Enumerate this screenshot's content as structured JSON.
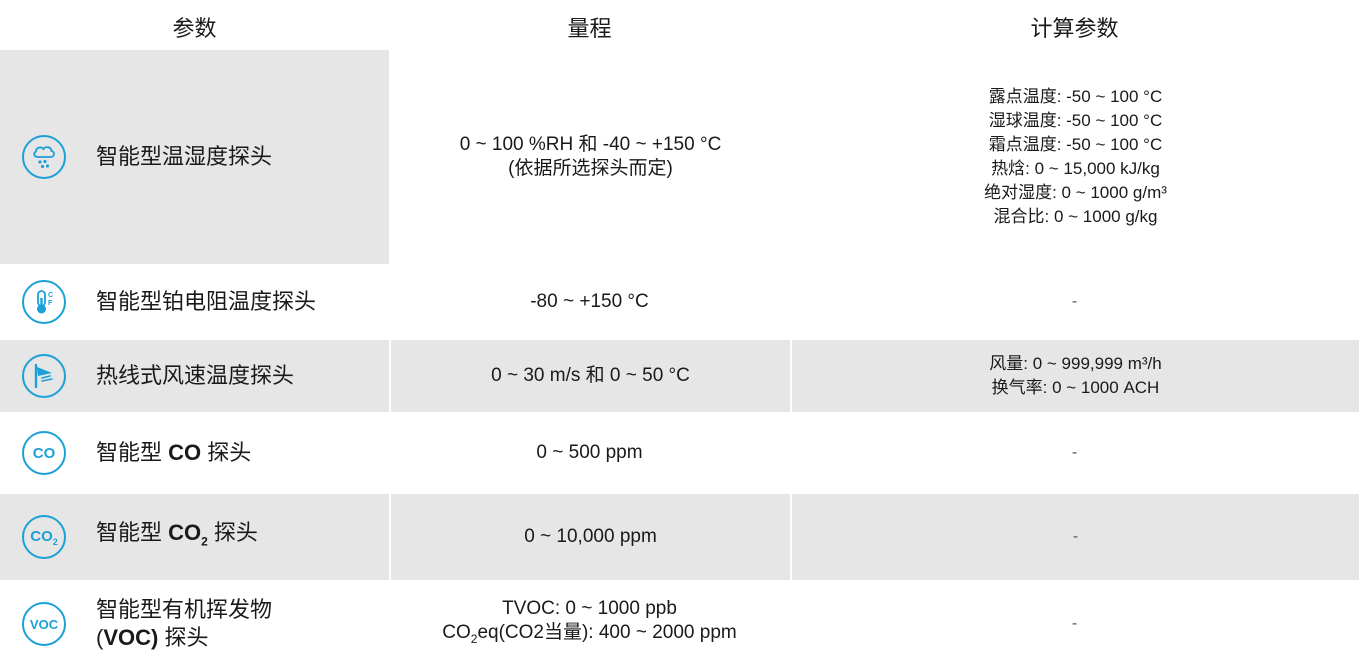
{
  "header": {
    "col_param": "参数",
    "col_range": "量程",
    "col_calc": "计算参数"
  },
  "rows": [
    {
      "icon": "cloud-rain-icon",
      "name": "智能型温湿度探头",
      "range_line1": "0 ~ 100 %RH 和 -40 ~ +150 °C",
      "range_line2": "(依据所选探头而定)",
      "calc": [
        "露点温度: -50 ~ 100 °C",
        "湿球温度: -50 ~ 100 °C",
        "霜点温度: -50 ~ 100 °C",
        "热焓: 0 ~ 15,000 kJ/kg",
        "绝对湿度: 0 ~ 1000 g/m³",
        "混合比: 0 ~ 1000 g/kg"
      ]
    },
    {
      "icon": "thermometer-icon",
      "icon_c": "C",
      "icon_f": "F",
      "name": "智能型铂电阻温度探头",
      "range_line1": "-80 ~ +150 °C",
      "calc_dash": "-"
    },
    {
      "icon": "anemometer-icon",
      "name": "热线式风速温度探头",
      "range_line1": "0 ~ 30 m/s 和 0 ~ 50 °C",
      "calc": [
        "风量: 0 ~ 999,999 m³/h",
        "换气率: 0 ~ 1000 ACH"
      ]
    },
    {
      "icon": "co-icon",
      "icon_text": "CO",
      "name_pre": "智能型 ",
      "name_bold": "CO",
      "name_post": " 探头",
      "range_line1": "0 ~ 500 ppm",
      "calc_dash": "-"
    },
    {
      "icon": "co2-icon",
      "icon_text": "CO",
      "icon_sub": "2",
      "name_pre": "智能型 ",
      "name_bold": "CO",
      "name_sub": "2",
      "name_post": " 探头",
      "range_line1": "0 ~ 10,000 ppm",
      "calc_dash": "-"
    },
    {
      "icon": "voc-icon",
      "icon_text": "VOC",
      "name_line1": "智能型有机挥发物",
      "name_l2_pre": "(",
      "name_l2_bold": "VOC)",
      "name_l2_post": " 探头",
      "range_line1": "TVOC: 0 ~ 1000 ppb",
      "range_l2_pre": "CO",
      "range_l2_sub": "2",
      "range_l2_post": "eq(CO2当量): 400 ~ 2000 ppm",
      "calc_dash": "-"
    }
  ],
  "colors": {
    "accent": "#1ba1d8",
    "shade": "#e6e6e6"
  }
}
